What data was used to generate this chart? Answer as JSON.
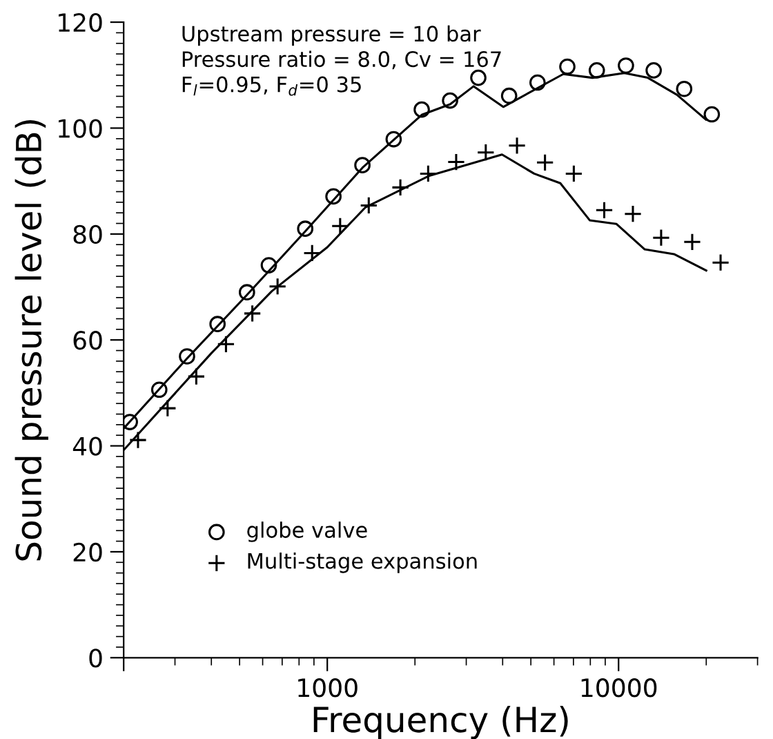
{
  "chart_data": {
    "type": "scatter",
    "xlabel": "Frequency (Hz)",
    "ylabel": "Sound pressure level (dB)",
    "log": "x",
    "xlim": [
      200,
      30000
    ],
    "xticks": [
      {
        "value": 200,
        "label": null
      },
      1000,
      10000
    ],
    "ylim": [
      0,
      120
    ],
    "yticks": [
      0,
      20,
      40,
      60,
      80,
      100,
      120
    ],
    "grid": false,
    "legend": "bottom left",
    "annotations": [
      "Upstream pressure = 10 bar",
      "Pressure ratio = 8.0, Cv = 167",
      "F$_{l}$=0.95, F$_{d}$=0 35"
    ],
    "series": [
      {
        "name": "globe valve",
        "marker": "circle",
        "color": "#000000",
        "x": [
          210,
          265,
          330,
          420,
          530,
          630,
          840,
          1050,
          1320,
          1690,
          2110,
          2640,
          3300,
          4210,
          5270,
          6670,
          8420,
          10600,
          13200,
          16800,
          20900
        ],
        "values": [
          44.5,
          50.6,
          56.9,
          63.0,
          69.0,
          74.1,
          81.0,
          87.1,
          93.0,
          97.9,
          103.5,
          105.2,
          109.5,
          106.1,
          108.6,
          111.6,
          110.9,
          111.8,
          110.9,
          107.4,
          102.6
        ]
      },
      {
        "name": "Multi-stage expansion",
        "marker": "cross",
        "color": "#000000",
        "x": [
          224,
          283,
          355,
          449,
          553,
          675,
          887,
          1107,
          1388,
          1782,
          2220,
          2770,
          3500,
          4480,
          5590,
          7020,
          8930,
          11200,
          14000,
          17900,
          22400
        ],
        "values": [
          41.1,
          47.1,
          53.1,
          59.2,
          65.0,
          70.1,
          76.4,
          81.5,
          85.4,
          88.8,
          91.4,
          93.6,
          95.4,
          96.7,
          93.5,
          91.4,
          84.5,
          83.8,
          79.3,
          78.5,
          74.6
        ]
      },
      {
        "type": "line",
        "marker": "none",
        "line_style": "solid",
        "color": "#000000",
        "x": [
          200,
          330,
          530,
          840,
          1320,
          2110,
          2640,
          3180,
          4020,
          6460,
          8130,
          10470,
          12600,
          15850,
          19950
        ],
        "values": [
          43.3,
          56.5,
          68.5,
          80.5,
          92.5,
          102.5,
          104.5,
          107.9,
          104.0,
          110.2,
          109.5,
          110.4,
          109.5,
          106.3,
          101.6
        ]
      },
      {
        "type": "line",
        "marker": "none",
        "line_style": "solid",
        "color": "#000000",
        "x": [
          200,
          400,
          645,
          1000,
          1350,
          2240,
          3980,
          5130,
          6310,
          7960,
          9840,
          12300,
          15500,
          20000
        ],
        "values": [
          39.2,
          57.5,
          69.2,
          77.5,
          85.0,
          91.0,
          95.0,
          91.4,
          89.6,
          82.6,
          81.9,
          77.1,
          76.2,
          73.1
        ]
      }
    ]
  }
}
